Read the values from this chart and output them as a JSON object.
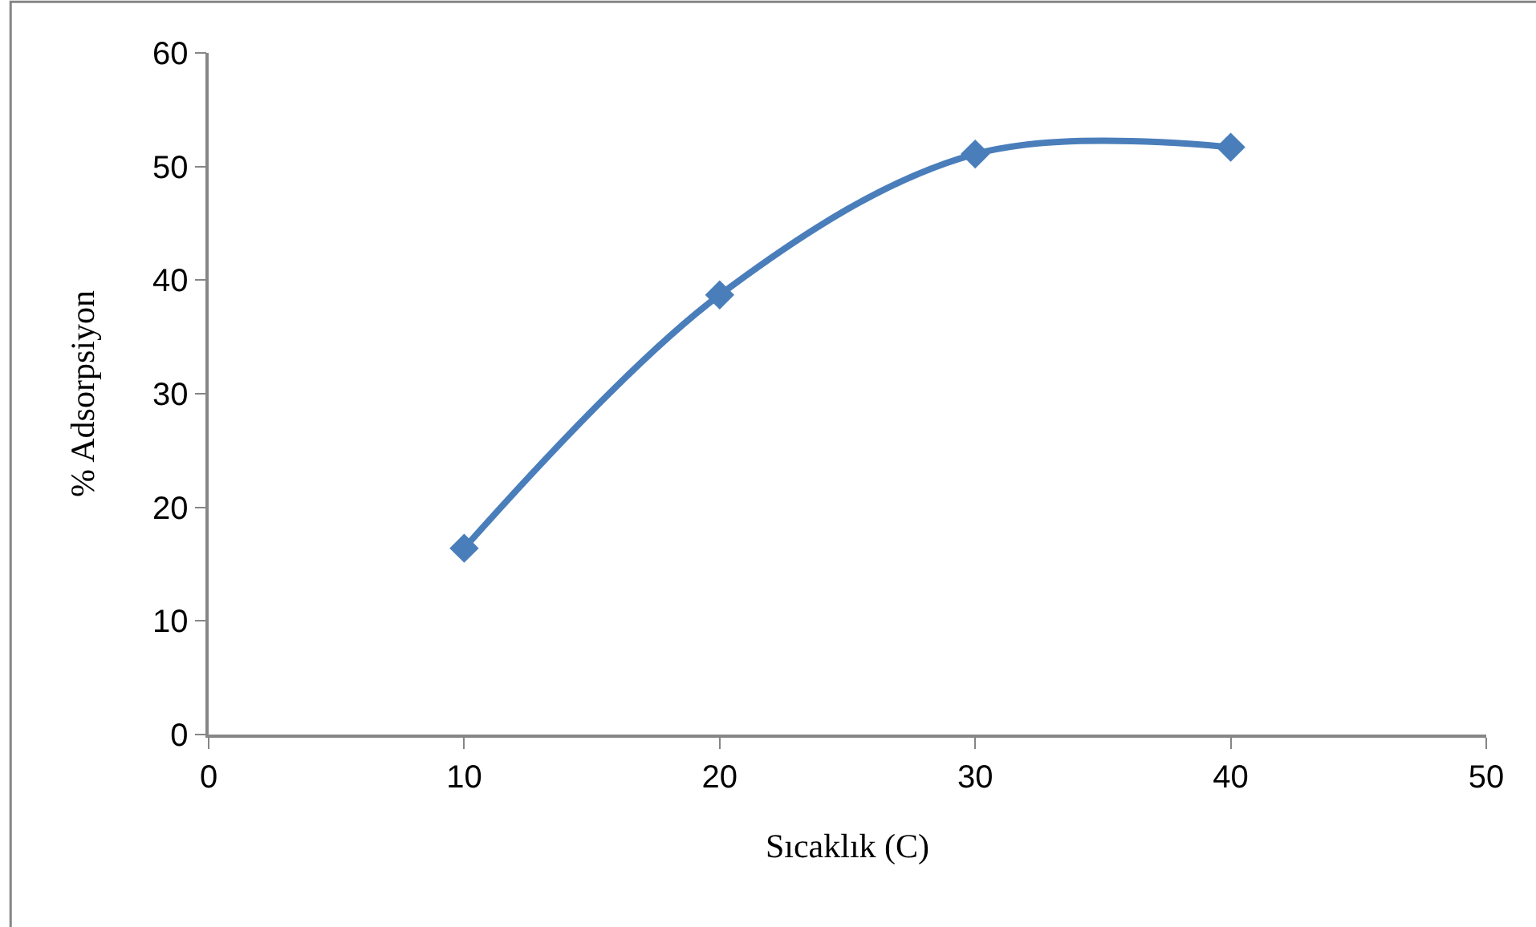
{
  "chart_data": {
    "type": "line",
    "xlabel": "Sıcaklık (C)",
    "ylabel": "% Adsorpsiyon",
    "x": [
      10,
      20,
      30,
      40
    ],
    "series": [
      {
        "color": "#4a7ebb",
        "values": [
          16.4,
          38.7,
          51.1,
          51.7
        ]
      }
    ],
    "xlim": [
      0,
      50
    ],
    "xticks": [
      0,
      10,
      20,
      30,
      40,
      50
    ],
    "ylim": [
      0,
      60
    ],
    "yticks": [
      0,
      10,
      20,
      30,
      40,
      50,
      60
    ],
    "legend": false,
    "marker": "diamond",
    "line_style": "solid"
  }
}
